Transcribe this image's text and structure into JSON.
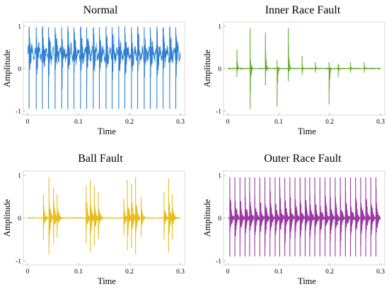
{
  "chart_data": [
    {
      "type": "line",
      "title": "Normal",
      "xlabel": "Time",
      "ylabel": "Amplitude",
      "xlim": [
        0,
        0.3
      ],
      "ylim": [
        -1,
        1
      ],
      "xticks": [
        "0",
        "0.1",
        "0.2",
        "0.3"
      ],
      "yticks": [
        "1",
        "0",
        "-1"
      ],
      "color": "#2f7fd2",
      "grid": false,
      "series": [
        {
          "kind": "vibration",
          "impulse_times": [
            0.003,
            0.017,
            0.029,
            0.041,
            0.054,
            0.067,
            0.079,
            0.091,
            0.104,
            0.116,
            0.129,
            0.141,
            0.154,
            0.166,
            0.179,
            0.191,
            0.204,
            0.216,
            0.229,
            0.241,
            0.254,
            0.266,
            0.279,
            0.291
          ],
          "baseline_band": [
            0.15,
            0.55
          ],
          "peak_max": 0.97,
          "peak_min": -0.95
        }
      ]
    },
    {
      "type": "line",
      "title": "Inner Race Fault",
      "xlabel": "Time",
      "ylabel": "Amplitude",
      "xlim": [
        0,
        0.3
      ],
      "ylim": [
        -1,
        1
      ],
      "xticks": [
        "0",
        "0.1",
        "0.2",
        "0.3"
      ],
      "yticks": [
        "1",
        "0",
        "-1"
      ],
      "color": "#64ad2e",
      "grid": false,
      "series": [
        {
          "kind": "impulse",
          "impulse_times": [
            0.018,
            0.044,
            0.074,
            0.097,
            0.119,
            0.146,
            0.172,
            0.199,
            0.217,
            0.241,
            0.268
          ],
          "peak_max": [
            0.45,
            0.95,
            0.85,
            0.2,
            0.95,
            0.3,
            0.15,
            0.15,
            0.12,
            0.15,
            0.15
          ],
          "peak_min": [
            -0.2,
            -0.95,
            -0.4,
            -0.9,
            -0.3,
            -0.15,
            -0.1,
            -0.85,
            -0.2,
            -0.1,
            -0.1
          ]
        }
      ]
    },
    {
      "type": "line",
      "title": "Ball Fault",
      "xlabel": "Time",
      "ylabel": "Amplitude",
      "xlim": [
        0,
        0.3
      ],
      "ylim": [
        -1,
        1
      ],
      "xticks": [
        "0",
        "0.1",
        "0.2",
        "0.3"
      ],
      "yticks": [
        "1",
        "0",
        "-1"
      ],
      "color": "#e6be1f",
      "grid": false,
      "series": [
        {
          "kind": "burst",
          "impulse_times": [
            0.031,
            0.042,
            0.051,
            0.058,
            0.115,
            0.123,
            0.131,
            0.139,
            0.189,
            0.196,
            0.204,
            0.212,
            0.223,
            0.268,
            0.277,
            0.284
          ],
          "peak_max": [
            0.55,
            0.95,
            0.7,
            0.55,
            0.75,
            0.9,
            0.75,
            0.6,
            0.45,
            0.9,
            0.8,
            0.95,
            0.5,
            0.6,
            0.92,
            0.55
          ],
          "peak_min": [
            -0.5,
            -0.85,
            -0.6,
            -0.45,
            -0.6,
            -0.8,
            -0.65,
            -0.5,
            -0.4,
            -0.75,
            -0.7,
            -0.85,
            -0.45,
            -0.5,
            -0.8,
            -0.5
          ]
        }
      ]
    },
    {
      "type": "line",
      "title": "Outer Race Fault",
      "xlabel": "Time",
      "ylabel": "Amplitude",
      "xlim": [
        0,
        0.3
      ],
      "ylim": [
        -1,
        1
      ],
      "xticks": [
        "0",
        "0.1",
        "0.2",
        "0.3"
      ],
      "yticks": [
        "1",
        "0",
        "-1"
      ],
      "color": "#9a3aa2",
      "grid": false,
      "series": [
        {
          "kind": "burst",
          "impulse_times": [
            0.004,
            0.014,
            0.024,
            0.034,
            0.043,
            0.053,
            0.063,
            0.073,
            0.083,
            0.093,
            0.102,
            0.112,
            0.122,
            0.132,
            0.142,
            0.152,
            0.161,
            0.171,
            0.181,
            0.191,
            0.201,
            0.211,
            0.221,
            0.231,
            0.241,
            0.251,
            0.261,
            0.271,
            0.281,
            0.291
          ],
          "peak_max": 0.95,
          "peak_min": -0.9
        }
      ]
    }
  ]
}
